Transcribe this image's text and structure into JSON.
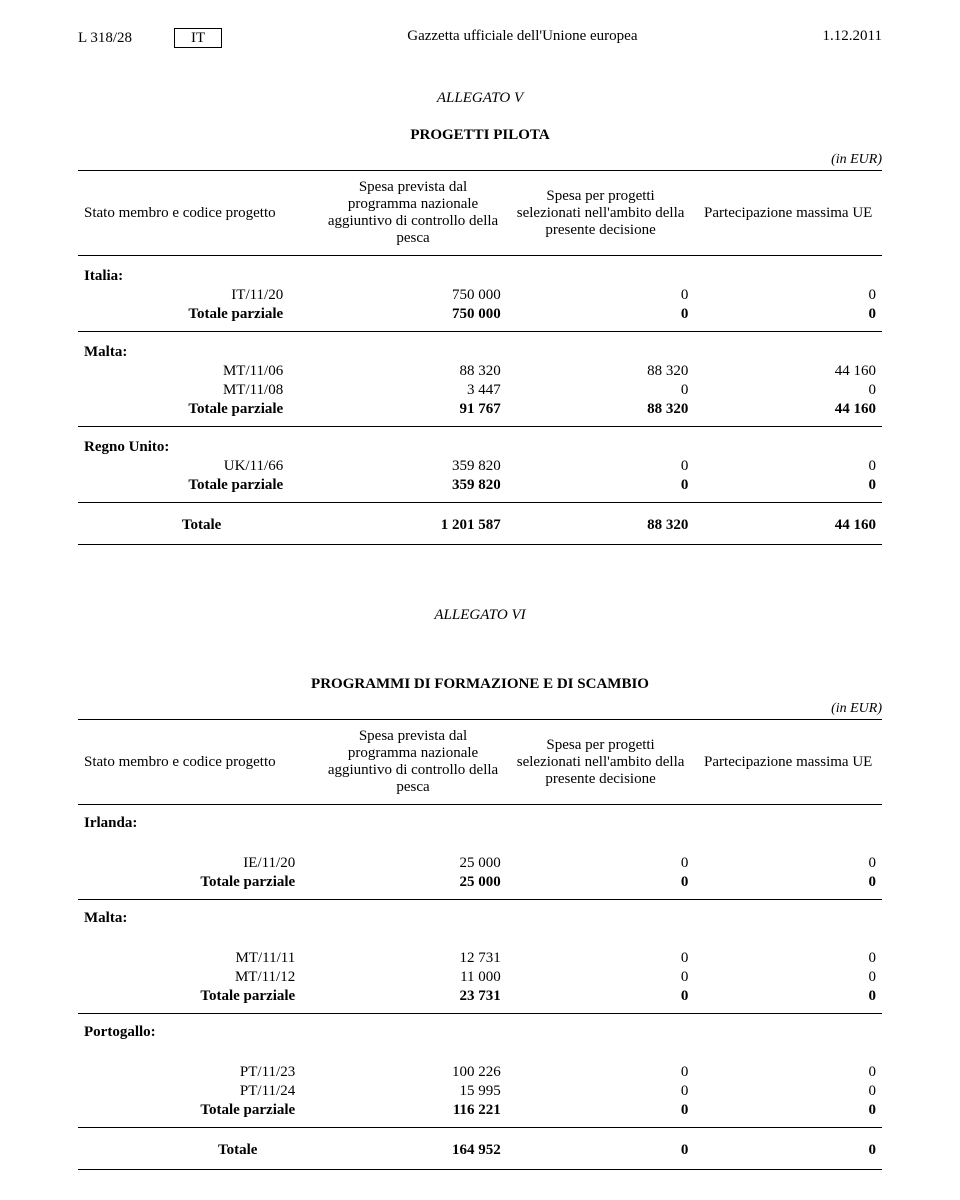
{
  "header": {
    "left": "L 318/28",
    "lang": "IT",
    "center": "Gazzetta ufficiale dell'Unione europea",
    "right": "1.12.2011"
  },
  "allegato_v": {
    "heading": "ALLEGATO V",
    "title": "PROGETTI PILOTA",
    "unit": "(in EUR)",
    "cols": [
      "Stato membro e codice progetto",
      "Spesa prevista dal programma nazionale aggiuntivo di controllo della pesca",
      "Spesa per progetti selezionati nell'ambito della presente decisione",
      "Partecipazione massima UE"
    ],
    "countries": [
      {
        "name": "Italia:",
        "rows": [
          {
            "label": "IT/11/20",
            "v": [
              "750 000",
              "0",
              "0"
            ]
          }
        ],
        "partial": {
          "label": "Totale parziale",
          "v": [
            "750 000",
            "0",
            "0"
          ]
        }
      },
      {
        "name": "Malta:",
        "rows": [
          {
            "label": "MT/11/06",
            "v": [
              "88 320",
              "88 320",
              "44 160"
            ]
          },
          {
            "label": "MT/11/08",
            "v": [
              "3 447",
              "0",
              "0"
            ]
          }
        ],
        "partial": {
          "label": "Totale parziale",
          "v": [
            "91 767",
            "88 320",
            "44 160"
          ]
        }
      },
      {
        "name": "Regno Unito:",
        "rows": [
          {
            "label": "UK/11/66",
            "v": [
              "359 820",
              "0",
              "0"
            ]
          }
        ],
        "partial": {
          "label": "Totale parziale",
          "v": [
            "359 820",
            "0",
            "0"
          ]
        }
      }
    ],
    "total": {
      "label": "Totale",
      "v": [
        "1 201 587",
        "88 320",
        "44 160"
      ]
    }
  },
  "allegato_vi": {
    "heading": "ALLEGATO VI",
    "title": "PROGRAMMI DI FORMAZIONE E DI SCAMBIO",
    "unit": "(in EUR)",
    "cols": [
      "Stato membro e codice progetto",
      "Spesa prevista dal programma nazionale aggiuntivo di controllo della pesca",
      "Spesa per progetti selezionati nell'ambito della presente decisione",
      "Partecipazione massima UE"
    ],
    "countries": [
      {
        "name": "Irlanda:",
        "rows": [
          {
            "label": "IE/11/20",
            "v": [
              "25 000",
              "0",
              "0"
            ]
          }
        ],
        "partial": {
          "label": "Totale parziale",
          "v": [
            "25 000",
            "0",
            "0"
          ]
        }
      },
      {
        "name": "Malta:",
        "rows": [
          {
            "label": "MT/11/11",
            "v": [
              "12 731",
              "0",
              "0"
            ]
          },
          {
            "label": "MT/11/12",
            "v": [
              "11 000",
              "0",
              "0"
            ]
          }
        ],
        "partial": {
          "label": "Totale parziale",
          "v": [
            "23 731",
            "0",
            "0"
          ]
        }
      },
      {
        "name": "Portogallo:",
        "rows": [
          {
            "label": "PT/11/23",
            "v": [
              "100 226",
              "0",
              "0"
            ]
          },
          {
            "label": "PT/11/24",
            "v": [
              "15 995",
              "0",
              "0"
            ]
          }
        ],
        "partial": {
          "label": "Totale parziale",
          "v": [
            "116 221",
            "0",
            "0"
          ]
        }
      }
    ],
    "total": {
      "label": "Totale",
      "v": [
        "164 952",
        "0",
        "0"
      ]
    }
  }
}
